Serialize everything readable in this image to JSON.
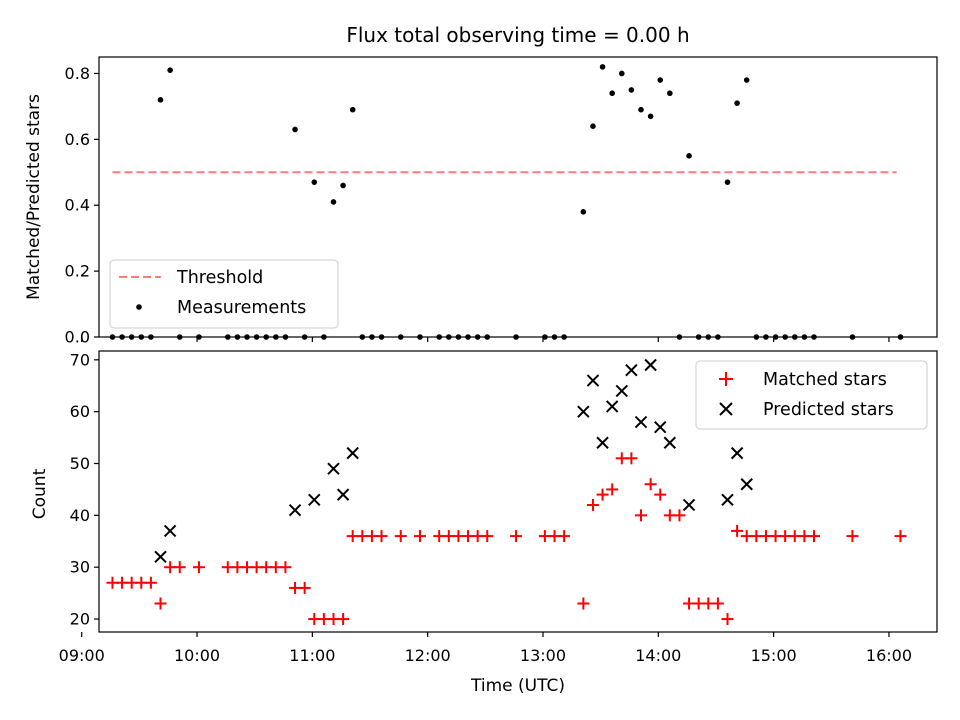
{
  "chart_data": [
    {
      "type": "scatter",
      "title": "Flux total observing time = 0.00 h",
      "xlabel": "",
      "ylabel": "Matched/Predicted stars",
      "xlim": [
        "09:09",
        "16:25"
      ],
      "ylim": [
        0,
        0.85
      ],
      "yticks": [
        0.0,
        0.2,
        0.4,
        0.6,
        0.8
      ],
      "ytick_labels": [
        "0.0",
        "0.2",
        "0.4",
        "0.6",
        "0.8"
      ],
      "threshold": {
        "name": "Threshold",
        "value": 0.5,
        "x_start": "09:16",
        "x_end": "16:04",
        "color": "#ff7a7a",
        "style": "dashed"
      },
      "legend": {
        "position": "lower-left",
        "entries": [
          "Threshold",
          "Measurements"
        ]
      },
      "series": [
        {
          "name": "Measurements",
          "marker": "dot",
          "color": "#000000",
          "points": [
            [
              "09:16",
              0
            ],
            [
              "09:21",
              0
            ],
            [
              "09:26",
              0
            ],
            [
              "09:31",
              0
            ],
            [
              "09:36",
              0
            ],
            [
              "09:41",
              0.72
            ],
            [
              "09:46",
              0.81
            ],
            [
              "09:51",
              0
            ],
            [
              "10:01",
              0
            ],
            [
              "10:16",
              0
            ],
            [
              "10:21",
              0
            ],
            [
              "10:26",
              0
            ],
            [
              "10:31",
              0
            ],
            [
              "10:36",
              0
            ],
            [
              "10:41",
              0
            ],
            [
              "10:46",
              0
            ],
            [
              "10:51",
              0.63
            ],
            [
              "10:56",
              0
            ],
            [
              "11:01",
              0.47
            ],
            [
              "11:06",
              0
            ],
            [
              "11:11",
              0.41
            ],
            [
              "11:16",
              0.46
            ],
            [
              "11:21",
              0.69
            ],
            [
              "11:26",
              0
            ],
            [
              "11:31",
              0
            ],
            [
              "11:36",
              0
            ],
            [
              "11:46",
              0
            ],
            [
              "11:56",
              0
            ],
            [
              "12:06",
              0
            ],
            [
              "12:11",
              0
            ],
            [
              "12:16",
              0
            ],
            [
              "12:21",
              0
            ],
            [
              "12:26",
              0
            ],
            [
              "12:31",
              0
            ],
            [
              "12:46",
              0
            ],
            [
              "13:01",
              0
            ],
            [
              "13:06",
              0
            ],
            [
              "13:11",
              0
            ],
            [
              "13:21",
              0.38
            ],
            [
              "13:26",
              0.64
            ],
            [
              "13:31",
              0.82
            ],
            [
              "13:36",
              0.74
            ],
            [
              "13:41",
              0.8
            ],
            [
              "13:46",
              0.75
            ],
            [
              "13:51",
              0.69
            ],
            [
              "13:56",
              0.67
            ],
            [
              "14:01",
              0.78
            ],
            [
              "14:06",
              0.74
            ],
            [
              "14:11",
              0
            ],
            [
              "14:16",
              0.55
            ],
            [
              "14:21",
              0
            ],
            [
              "14:26",
              0
            ],
            [
              "14:31",
              0
            ],
            [
              "14:36",
              0.47
            ],
            [
              "14:41",
              0.71
            ],
            [
              "14:46",
              0.78
            ],
            [
              "14:51",
              0
            ],
            [
              "14:56",
              0
            ],
            [
              "15:01",
              0
            ],
            [
              "15:06",
              0
            ],
            [
              "15:11",
              0
            ],
            [
              "15:16",
              0
            ],
            [
              "15:21",
              0
            ],
            [
              "15:41",
              0
            ],
            [
              "16:06",
              0
            ]
          ]
        }
      ]
    },
    {
      "type": "scatter",
      "title": "",
      "xlabel": "Time (UTC)",
      "ylabel": "Count",
      "xlim": [
        "09:09",
        "16:25"
      ],
      "ylim": [
        17.5,
        71.7
      ],
      "yticks": [
        20,
        30,
        40,
        50,
        60,
        70
      ],
      "ytick_labels": [
        "20",
        "30",
        "40",
        "50",
        "60",
        "70"
      ],
      "xticks": [
        "09:00",
        "10:00",
        "11:00",
        "12:00",
        "13:00",
        "14:00",
        "15:00",
        "16:00"
      ],
      "legend": {
        "position": "top-right",
        "entries": [
          "Matched stars",
          "Predicted stars"
        ]
      },
      "series": [
        {
          "name": "Matched stars",
          "marker": "plus",
          "color": "#ff0000",
          "points": [
            [
              "09:16",
              27
            ],
            [
              "09:21",
              27
            ],
            [
              "09:26",
              27
            ],
            [
              "09:31",
              27
            ],
            [
              "09:36",
              27
            ],
            [
              "09:41",
              23
            ],
            [
              "09:46",
              30
            ],
            [
              "09:51",
              30
            ],
            [
              "10:01",
              30
            ],
            [
              "10:16",
              30
            ],
            [
              "10:21",
              30
            ],
            [
              "10:26",
              30
            ],
            [
              "10:31",
              30
            ],
            [
              "10:36",
              30
            ],
            [
              "10:41",
              30
            ],
            [
              "10:46",
              30
            ],
            [
              "10:51",
              26
            ],
            [
              "10:56",
              26
            ],
            [
              "11:01",
              20
            ],
            [
              "11:06",
              20
            ],
            [
              "11:11",
              20
            ],
            [
              "11:16",
              20
            ],
            [
              "11:21",
              36
            ],
            [
              "11:26",
              36
            ],
            [
              "11:31",
              36
            ],
            [
              "11:36",
              36
            ],
            [
              "11:46",
              36
            ],
            [
              "11:56",
              36
            ],
            [
              "12:06",
              36
            ],
            [
              "12:11",
              36
            ],
            [
              "12:16",
              36
            ],
            [
              "12:21",
              36
            ],
            [
              "12:26",
              36
            ],
            [
              "12:31",
              36
            ],
            [
              "12:46",
              36
            ],
            [
              "13:01",
              36
            ],
            [
              "13:06",
              36
            ],
            [
              "13:11",
              36
            ],
            [
              "13:21",
              23
            ],
            [
              "13:26",
              42
            ],
            [
              "13:31",
              44
            ],
            [
              "13:36",
              45
            ],
            [
              "13:41",
              51
            ],
            [
              "13:46",
              51
            ],
            [
              "13:51",
              40
            ],
            [
              "13:56",
              46
            ],
            [
              "14:01",
              44
            ],
            [
              "14:06",
              40
            ],
            [
              "14:11",
              40
            ],
            [
              "14:16",
              23
            ],
            [
              "14:21",
              23
            ],
            [
              "14:26",
              23
            ],
            [
              "14:31",
              23
            ],
            [
              "14:36",
              20
            ],
            [
              "14:41",
              37
            ],
            [
              "14:46",
              36
            ],
            [
              "14:51",
              36
            ],
            [
              "14:56",
              36
            ],
            [
              "15:01",
              36
            ],
            [
              "15:06",
              36
            ],
            [
              "15:11",
              36
            ],
            [
              "15:16",
              36
            ],
            [
              "15:21",
              36
            ],
            [
              "15:41",
              36
            ],
            [
              "16:06",
              36
            ]
          ]
        },
        {
          "name": "Predicted stars",
          "marker": "x",
          "color": "#000000",
          "points": [
            [
              "09:41",
              32
            ],
            [
              "09:46",
              37
            ],
            [
              "10:51",
              41
            ],
            [
              "11:01",
              43
            ],
            [
              "11:11",
              49
            ],
            [
              "11:16",
              44
            ],
            [
              "11:21",
              52
            ],
            [
              "13:21",
              60
            ],
            [
              "13:26",
              66
            ],
            [
              "13:31",
              54
            ],
            [
              "13:36",
              61
            ],
            [
              "13:41",
              64
            ],
            [
              "13:46",
              68
            ],
            [
              "13:51",
              58
            ],
            [
              "13:56",
              69
            ],
            [
              "14:01",
              57
            ],
            [
              "14:06",
              54
            ],
            [
              "14:16",
              42
            ],
            [
              "14:36",
              43
            ],
            [
              "14:41",
              52
            ],
            [
              "14:46",
              46
            ]
          ]
        }
      ]
    }
  ]
}
